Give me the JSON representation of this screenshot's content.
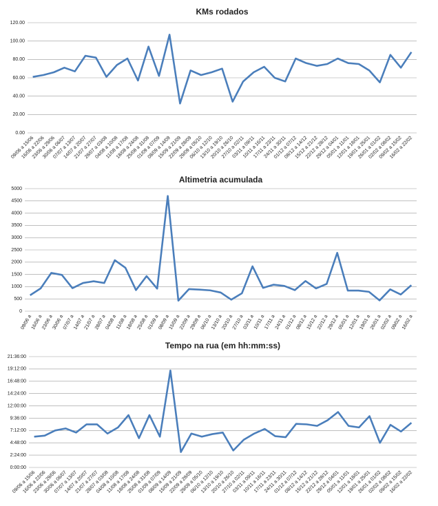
{
  "chart_data": [
    {
      "type": "line",
      "title": "KMs rodados",
      "color": "#4a7ebb",
      "grid": true,
      "categories": [
        "09/06 a 15/06",
        "16/06 a 22/06",
        "23/06 a 29/06",
        "30/06 a 06/07",
        "07/07 a 13/07",
        "14/07 a 20/07",
        "21/07 a 27/07",
        "28/07 a 03/08",
        "04/08 a 10/08",
        "11/08 a 17/08",
        "18/08 a 24/08",
        "25/08 a 31/08",
        "01/09 a 07/09",
        "08/09 a 14/09",
        "15/09 a 21/09",
        "22/09 a 28/09",
        "29/09 a 05/10",
        "06/10 a 12/10",
        "13/10 a 19/10",
        "20/10 a 26/10",
        "27/10 a 02/11",
        "03/11 a 09/11",
        "10/11 a 16/11",
        "17/11 a 23/11",
        "24/11 a 30/11",
        "01/12 a 07/12",
        "08/12 a 14/12",
        "15/12 a 21/12",
        "22/12 a 28/12",
        "29/12 a 04/01",
        "05/01 a 11/01",
        "12/01 a 18/01",
        "19/01 a 25/01",
        "26/01 a 01/02",
        "02/02 a 08/02",
        "09/02 a 15/02",
        "16/02 a 22/02"
      ],
      "values": [
        61,
        63,
        66,
        71,
        67,
        84,
        82,
        61,
        74,
        81,
        57,
        94,
        62,
        107,
        32,
        68,
        63,
        66,
        70,
        34,
        56,
        66,
        72,
        60,
        56,
        81,
        76,
        73,
        75,
        81,
        76,
        75,
        68,
        55,
        85,
        71,
        88
      ],
      "ylim": [
        0,
        120
      ],
      "yticks": [
        {
          "value": 0,
          "label": "0.00"
        },
        {
          "value": 20,
          "label": "20.00"
        },
        {
          "value": 40,
          "label": "40.00"
        },
        {
          "value": 60,
          "label": "60.00"
        },
        {
          "value": 80,
          "label": "80.00"
        },
        {
          "value": 100,
          "label": "100.00"
        },
        {
          "value": 120,
          "label": "120.00"
        }
      ]
    },
    {
      "type": "line",
      "title": "Altimetria acumulada",
      "color": "#4a7ebb",
      "grid": true,
      "categories": [
        "09/06 a",
        "16/06 a",
        "23/06 a",
        "30/06 a",
        "07/07 a",
        "14/07 a",
        "21/07 a",
        "28/07 a",
        "04/08 a",
        "11/08 a",
        "18/08 a",
        "25/08 a",
        "01/09 a",
        "08/09 a",
        "15/09 a",
        "22/09 a",
        "29/09 a",
        "06/10 a",
        "13/10 a",
        "20/10 a",
        "27/10 a",
        "03/11 a",
        "10/11 a",
        "17/11 a",
        "24/11 a",
        "01/12 a",
        "08/12 a",
        "15/12 a",
        "22/12 a",
        "29/12 a",
        "05/01 a",
        "12/01 a",
        "19/01 a",
        "26/01 a",
        "02/02 a",
        "09/02 a",
        "16/02 a"
      ],
      "values": [
        650,
        930,
        1560,
        1480,
        940,
        1150,
        1220,
        1150,
        2080,
        1770,
        860,
        1430,
        920,
        4700,
        430,
        900,
        880,
        850,
        760,
        470,
        730,
        1830,
        950,
        1080,
        1030,
        860,
        1230,
        930,
        1110,
        2380,
        840,
        840,
        790,
        440,
        890,
        680,
        1060
      ],
      "ylim": [
        0,
        5000
      ],
      "yticks": [
        0,
        500,
        1000,
        1500,
        2000,
        2500,
        3000,
        3500,
        4000,
        4500,
        5000
      ]
    },
    {
      "type": "line",
      "title": "Tempo na rua (em hh:mm:ss)",
      "color": "#4a7ebb",
      "grid": true,
      "categories": [
        "09/06 a 15/06",
        "16/06 a 22/06",
        "23/06 a 29/06",
        "30/06 a 06/07",
        "07/07 a 13/07",
        "14/07 a 20/07",
        "21/07 a 27/07",
        "28/07 a 03/08",
        "04/08 a 10/08",
        "11/08 a 17/08",
        "18/08 a 24/08",
        "25/08 a 31/08",
        "01/09 a 07/09",
        "08/09 a 14/09",
        "15/09 a 21/09",
        "22/09 a 28/09",
        "29/09 a 05/10",
        "06/10 a 12/10",
        "13/10 a 19/10",
        "20/10 a 26/10",
        "27/10 a 02/11",
        "03/11 a 09/11",
        "10/11 a 16/11",
        "17/11 a 23/11",
        "24/11 a 30/11",
        "01/12 a 07/12",
        "08/12 a 14/12",
        "15/12 a 21/12",
        "22/12 a 28/12",
        "29/12 a 04/01",
        "05/01 a 11/01",
        "12/01 a 18/01",
        "19/01 a 25/01",
        "26/01 a 01/02",
        "02/02 a 08/02",
        "09/02 a 15/02",
        "16/02 a 22/02"
      ],
      "values": [
        6.0,
        6.2,
        7.2,
        7.6,
        6.8,
        8.4,
        8.4,
        6.6,
        7.8,
        10.2,
        5.7,
        10.2,
        6.0,
        18.9,
        3.0,
        6.6,
        6.0,
        6.5,
        6.8,
        3.3,
        5.4,
        6.6,
        7.5,
        6.1,
        5.9,
        8.5,
        8.4,
        8.1,
        9.2,
        10.8,
        8.1,
        7.8,
        10.0,
        4.8,
        8.3,
        7.0,
        8.7
      ],
      "ylim": [
        0,
        21.6
      ],
      "yticks": [
        {
          "value": 0,
          "label": "0:00:00"
        },
        {
          "value": 2.4,
          "label": "2:24:00"
        },
        {
          "value": 4.8,
          "label": "4:48:00"
        },
        {
          "value": 7.2,
          "label": "7:12:00"
        },
        {
          "value": 9.6,
          "label": "9:36:00"
        },
        {
          "value": 12,
          "label": "12:00:00"
        },
        {
          "value": 14.4,
          "label": "14:24:00"
        },
        {
          "value": 16.8,
          "label": "16:48:00"
        },
        {
          "value": 19.2,
          "label": "19:12:00"
        },
        {
          "value": 21.6,
          "label": "21:36:00"
        }
      ]
    }
  ]
}
